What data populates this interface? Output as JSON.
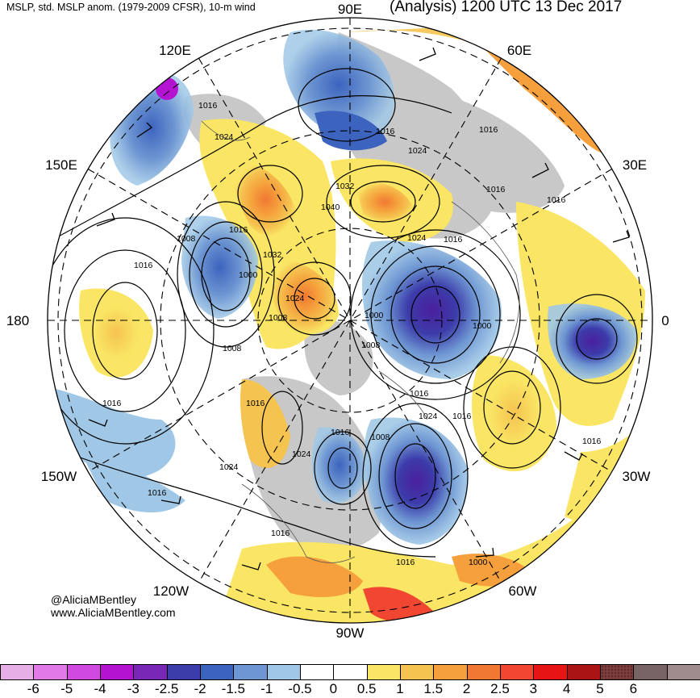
{
  "header": {
    "left_title": "MSLP, std. MSLP anom. (1979-2009 CFSR), 10-m wind",
    "right_title": "(Analysis) 1200 UTC 13 Dec 2017"
  },
  "credits": {
    "twitter": "@AliciaMBentley",
    "website": "www.AliciaMBentley.com"
  },
  "map": {
    "projection": "north-polar-stereographic",
    "longitude_labels": [
      {
        "text": "90E",
        "lon": 90
      },
      {
        "text": "60E",
        "lon": 60
      },
      {
        "text": "30E",
        "lon": 30
      },
      {
        "text": "0",
        "lon": 0
      },
      {
        "text": "30W",
        "lon": -30
      },
      {
        "text": "60W",
        "lon": -60
      },
      {
        "text": "90W",
        "lon": -90
      },
      {
        "text": "120W",
        "lon": -120
      },
      {
        "text": "150W",
        "lon": -150
      },
      {
        "text": "180",
        "lon": 180
      },
      {
        "text": "150E",
        "lon": 150
      },
      {
        "text": "120E",
        "lon": 120
      }
    ],
    "anomaly_centers": [
      {
        "name": "east-siberian-sea-low",
        "value": -3,
        "color": "#2c3fa3"
      },
      {
        "name": "kara-sea-low",
        "value": -2.5,
        "color": "#3a45b5"
      },
      {
        "name": "greenland-sea-low",
        "value": -2,
        "color": "#4a6fc4"
      },
      {
        "name": "hudson-bay-low",
        "value": -3,
        "color": "#3a3aa8"
      },
      {
        "name": "labrador-low",
        "value": -4,
        "color": "#4b1f9e"
      },
      {
        "name": "north-atlantic-low",
        "value": -3,
        "color": "#4b2aa8"
      },
      {
        "name": "siberian-high",
        "value": 2,
        "color": "#f0964c"
      },
      {
        "name": "central-asia-high",
        "value": 2,
        "color": "#f0964c"
      },
      {
        "name": "beaufort-high",
        "value": 2,
        "color": "#f0964c"
      },
      {
        "name": "pacific-high",
        "value": 1,
        "color": "#fbe474"
      },
      {
        "name": "eastern-atlantic-high",
        "value": 1.5,
        "color": "#f4c45e"
      },
      {
        "name": "southeast-us-high",
        "value": 2.5,
        "color": "#ea6a3a"
      }
    ],
    "isobar_labels": [
      "1016",
      "1024",
      "1032",
      "1040",
      "1008",
      "1000",
      "1016",
      "1024",
      "1032",
      "1016",
      "1024",
      "1016",
      "1016",
      "1000",
      "1008",
      "1000",
      "1008",
      "1016",
      "1016",
      "1024",
      "1016",
      "1016",
      "1024",
      "1016",
      "1008",
      "1016",
      "1024",
      "1024",
      "1016",
      "1016",
      "1016",
      "1016",
      "1016",
      "1008",
      "1016",
      "1000"
    ]
  },
  "colorbar": {
    "swatches": [
      {
        "color": "#e6b0e6"
      },
      {
        "color": "#e07ae6"
      },
      {
        "color": "#d04ae0"
      },
      {
        "color": "#b414d2"
      },
      {
        "color": "#7828b4"
      },
      {
        "color": "#3c3caa"
      },
      {
        "color": "#3c64be"
      },
      {
        "color": "#6e96d2"
      },
      {
        "color": "#a0c8e6"
      },
      {
        "color": "#ffffff"
      },
      {
        "color": "#ffffff"
      },
      {
        "color": "#fae664"
      },
      {
        "color": "#f5c350"
      },
      {
        "color": "#f5a03c"
      },
      {
        "color": "#f07832"
      },
      {
        "color": "#f04632"
      },
      {
        "color": "#e61414"
      },
      {
        "color": "#aa1414"
      },
      {
        "color": "#7d3c3c"
      },
      {
        "color": "#786464"
      },
      {
        "color": "#a08c8c"
      }
    ],
    "tick_labels": [
      "-6",
      "-5",
      "-4",
      "-3",
      "-2.5",
      "-2",
      "-1.5",
      "-1",
      "-0.5",
      "0",
      "0.5",
      "1",
      "1.5",
      "2",
      "2.5",
      "3",
      "4",
      "5",
      "6"
    ]
  }
}
